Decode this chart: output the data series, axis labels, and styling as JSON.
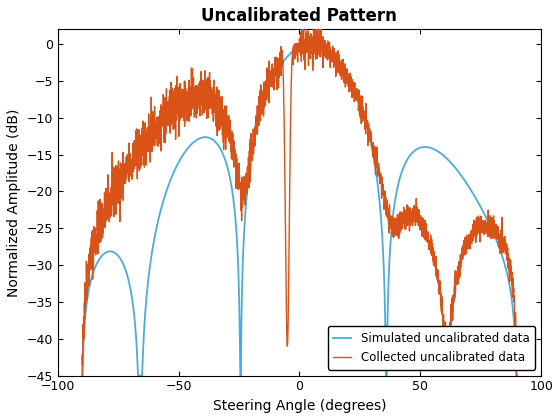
{
  "title": "Uncalibrated Pattern",
  "xlabel": "Steering Angle (degrees)",
  "ylabel": "Normalized Amplitude (dB)",
  "xlim": [
    -100,
    100
  ],
  "ylim": [
    -45,
    2
  ],
  "yticks": [
    0,
    -5,
    -10,
    -15,
    -20,
    -25,
    -30,
    -35,
    -40,
    -45
  ],
  "xticks": [
    -100,
    -50,
    0,
    50,
    100
  ],
  "simulated_color": "#4DAADF",
  "collected_color": "#D95319",
  "legend_labels": [
    "Simulated uncalibrated data",
    "Collected uncalibrated data"
  ],
  "background_color": "#FFFFFF",
  "noise_seed": 42,
  "linewidth_sim": 1.3,
  "linewidth_col": 1.0
}
